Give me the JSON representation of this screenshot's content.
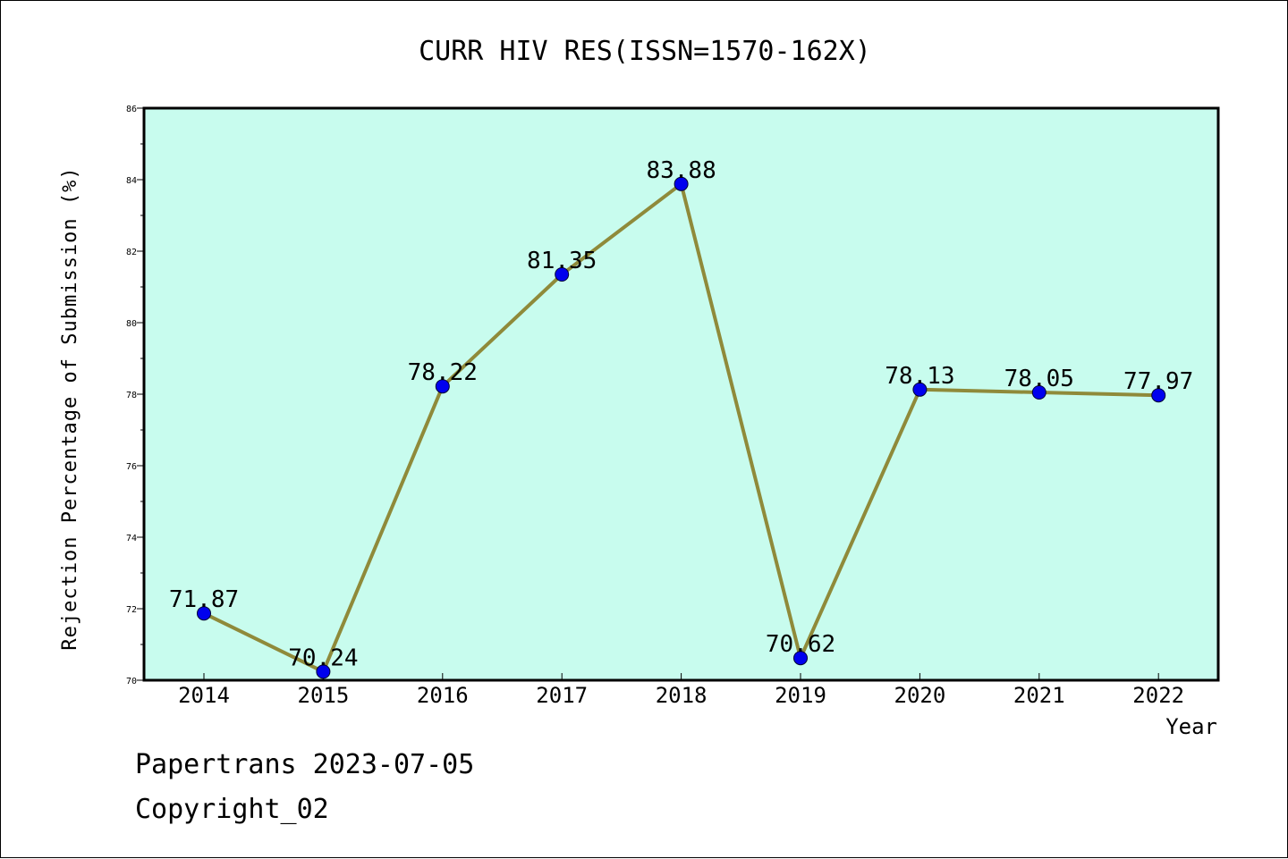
{
  "colors": {
    "plot_background": "#c8fcee",
    "line": "#8f8a3a",
    "marker": "#0000ee",
    "axis": "#000000"
  },
  "chart_data": {
    "type": "line",
    "title": "CURR HIV RES(ISSN=1570-162X)",
    "xlabel": "Year",
    "ylabel": "Rejection Percentage of Submission (%)",
    "categories": [
      "2014",
      "2015",
      "2016",
      "2017",
      "2018",
      "2019",
      "2020",
      "2021",
      "2022"
    ],
    "series": [
      {
        "values": [
          71.87,
          70.24,
          78.22,
          81.35,
          83.88,
          70.62,
          78.13,
          78.05,
          77.97
        ],
        "labels": [
          "71.87",
          "70.24",
          "78.22",
          "81.35",
          "83.88",
          "70.62",
          "78.13",
          "78.05",
          "77.97"
        ]
      }
    ],
    "ylim": [
      70,
      86
    ],
    "yticks": [
      "70",
      "72",
      "74",
      "76",
      "78",
      "80",
      "82",
      "84",
      "86"
    ],
    "grid": false,
    "legend": "none"
  },
  "footer": {
    "line1": "Papertrans 2023-07-05",
    "line2": "Copyright_02"
  }
}
